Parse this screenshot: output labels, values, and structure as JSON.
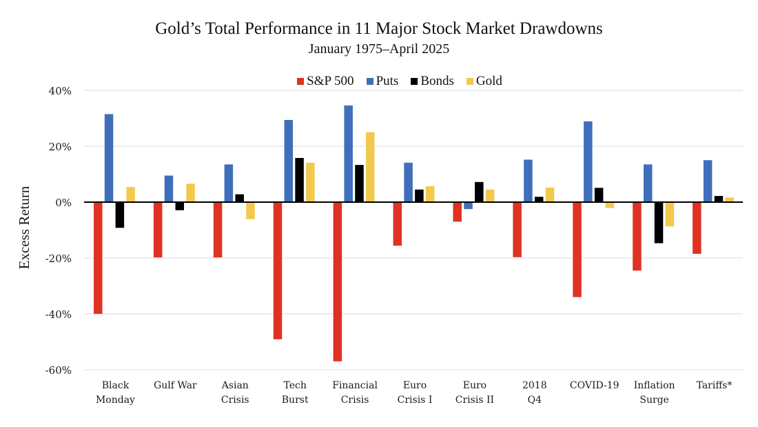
{
  "chart_data": {
    "type": "bar",
    "title": "Gold’s Total Performance in 11 Major Stock Market Drawdowns",
    "subtitle": "January 1975–April 2025",
    "xlabel": "",
    "ylabel": "Excess Return",
    "ylim": [
      -60,
      40
    ],
    "yticks": [
      40,
      20,
      0,
      -20,
      -40,
      -60
    ],
    "ytick_labels": [
      "40%",
      "20%",
      "0%",
      "-20%",
      "-40%",
      "-60%"
    ],
    "grid": true,
    "legend_position": "top-center",
    "categories": [
      [
        "Black",
        "Monday"
      ],
      [
        "Gulf War"
      ],
      [
        "Asian",
        "Crisis"
      ],
      [
        "Tech",
        "Burst"
      ],
      [
        "Financial",
        "Crisis"
      ],
      [
        "Euro",
        "Crisis I"
      ],
      [
        "Euro",
        "Crisis II"
      ],
      [
        "2018",
        "Q4"
      ],
      [
        "COVID-19"
      ],
      [
        "Inflation",
        "Surge"
      ],
      [
        "Tariffs*"
      ]
    ],
    "series": [
      {
        "name": "S&P 500",
        "color": "#E03223",
        "values": [
          -40.0,
          -19.8,
          -19.8,
          -49.1,
          -57.0,
          -15.6,
          -7.0,
          -19.7,
          -34.0,
          -24.5,
          -18.5
        ]
      },
      {
        "name": "Puts",
        "color": "#3F6FBB",
        "values": [
          31.5,
          9.5,
          13.5,
          29.4,
          34.6,
          14.1,
          -2.5,
          15.2,
          28.9,
          13.5,
          15.0
        ]
      },
      {
        "name": "Bonds",
        "color": "#000000",
        "values": [
          -9.2,
          -2.9,
          2.8,
          15.8,
          13.3,
          4.5,
          7.2,
          1.9,
          5.1,
          -14.7,
          2.2
        ]
      },
      {
        "name": "Gold",
        "color": "#F2C94C",
        "values": [
          5.4,
          6.6,
          -6.1,
          14.1,
          25.0,
          5.7,
          4.5,
          5.2,
          -2.1,
          -8.7,
          1.6
        ]
      }
    ]
  }
}
